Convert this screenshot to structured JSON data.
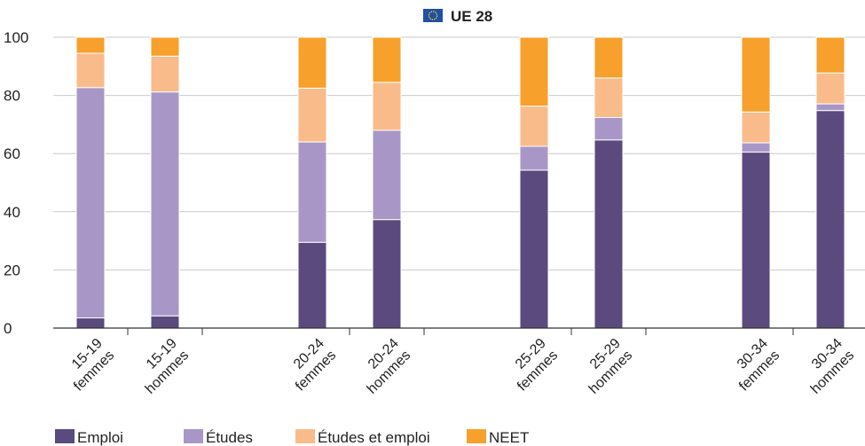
{
  "chart_data": {
    "type": "bar",
    "stacked": true,
    "title": "UE 28",
    "title_icon": "eu-flag-icon",
    "categories": [
      {
        "line1": "15-19",
        "line2": "femmes"
      },
      {
        "line1": "15-19",
        "line2": "hommes"
      },
      {
        "line1": "20-24",
        "line2": "femmes"
      },
      {
        "line1": "20-24",
        "line2": "hommes"
      },
      {
        "line1": "25-29",
        "line2": "femmes"
      },
      {
        "line1": "25-29",
        "line2": "hommes"
      },
      {
        "line1": "30-34",
        "line2": "femmes"
      },
      {
        "line1": "30-34",
        "line2": "hommes"
      }
    ],
    "series": [
      {
        "name": "Emploi",
        "color": "#5b4a7e",
        "values": [
          3.5,
          4.2,
          29.5,
          37.3,
          54.3,
          64.7,
          60.5,
          74.8
        ]
      },
      {
        "name": "Études",
        "color": "#a897c6",
        "values": [
          79.2,
          77.0,
          34.5,
          30.7,
          8.2,
          7.7,
          3.2,
          2.3
        ]
      },
      {
        "name": "Études et emploi",
        "color": "#f9bb8a",
        "values": [
          11.8,
          12.3,
          18.5,
          16.5,
          13.8,
          13.6,
          10.6,
          10.6
        ]
      },
      {
        "name": "NEET",
        "color": "#f7a02b",
        "values": [
          5.5,
          6.5,
          17.5,
          15.5,
          23.7,
          14.0,
          25.7,
          12.3
        ]
      }
    ],
    "ylim": [
      0,
      100
    ],
    "yticks": [
      0,
      20,
      40,
      60,
      80,
      100
    ],
    "grid": true,
    "legend_position": "bottom-left"
  }
}
